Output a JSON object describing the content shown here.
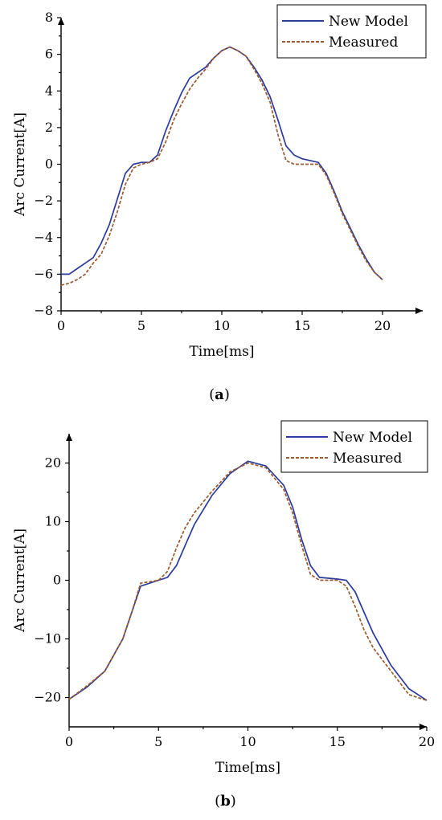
{
  "chart_data": [
    {
      "type": "line",
      "caption": "(a)",
      "caption_bold": "a",
      "xlabel": "Time[ms]",
      "ylabel": "Arc Current[A]",
      "xlim": [
        0,
        22.5
      ],
      "ylim": [
        -8,
        8
      ],
      "xticks": [
        0,
        5,
        10,
        15,
        20
      ],
      "yticks": [
        -8,
        -6,
        -4,
        -2,
        0,
        2,
        4,
        6,
        8
      ],
      "legend_position": "top-right",
      "series": [
        {
          "name": "New Model",
          "color": "#2b3a9c",
          "dash": "solid",
          "x": [
            0,
            0.5,
            1,
            1.5,
            2,
            2.5,
            3,
            3.5,
            4,
            4.5,
            5,
            5.5,
            6,
            6.5,
            7,
            7.5,
            8,
            8.5,
            9,
            9.5,
            10,
            10.5,
            11,
            11.5,
            12,
            12.5,
            13,
            13.5,
            14,
            14.5,
            15,
            15.5,
            16,
            16.5,
            17,
            17.5,
            18,
            18.5,
            19,
            19.5,
            20
          ],
          "y": [
            -6.0,
            -6.0,
            -5.7,
            -5.4,
            -5.1,
            -4.3,
            -3.3,
            -1.9,
            -0.5,
            0.0,
            0.1,
            0.1,
            0.5,
            1.8,
            2.9,
            3.9,
            4.7,
            5.0,
            5.3,
            5.8,
            6.2,
            6.4,
            6.2,
            5.9,
            5.3,
            4.6,
            3.7,
            2.4,
            1.0,
            0.5,
            0.3,
            0.2,
            0.1,
            -0.5,
            -1.5,
            -2.6,
            -3.5,
            -4.4,
            -5.2,
            -5.9,
            -6.3
          ]
        },
        {
          "name": "Measured",
          "color": "#9a5a2e",
          "dash": "dashed",
          "x": [
            0,
            0.5,
            1,
            1.5,
            2,
            2.5,
            3,
            3.5,
            4,
            4.5,
            5,
            5.5,
            6,
            6.5,
            7,
            7.5,
            8,
            8.5,
            9,
            9.5,
            10,
            10.5,
            11,
            11.5,
            12,
            12.5,
            13,
            13.5,
            14,
            14.5,
            15,
            15.5,
            16,
            16.5,
            17,
            17.5,
            18,
            18.5,
            19,
            19.5,
            20
          ],
          "y": [
            -6.6,
            -6.5,
            -6.3,
            -6.0,
            -5.4,
            -4.9,
            -3.9,
            -2.6,
            -1.1,
            -0.2,
            0.0,
            0.1,
            0.3,
            1.2,
            2.4,
            3.3,
            4.1,
            4.7,
            5.2,
            5.8,
            6.2,
            6.4,
            6.2,
            5.9,
            5.2,
            4.4,
            3.4,
            1.6,
            0.2,
            0.0,
            0.0,
            0.0,
            0.0,
            -0.6,
            -1.6,
            -2.7,
            -3.6,
            -4.5,
            -5.3,
            -5.9,
            -6.3
          ]
        }
      ]
    },
    {
      "type": "line",
      "caption": "(b)",
      "caption_bold": "b",
      "xlabel": "Time[ms]",
      "ylabel": "Arc Current[A]",
      "xlim": [
        0,
        20
      ],
      "ylim": [
        -25,
        25
      ],
      "xticks": [
        0,
        5,
        10,
        15,
        20
      ],
      "yticks": [
        -20,
        -10,
        0,
        10,
        20
      ],
      "legend_position": "top-right",
      "series": [
        {
          "name": "New Model",
          "color": "#2b3a9c",
          "dash": "solid",
          "x": [
            0,
            1,
            2,
            3,
            3.5,
            4,
            5,
            5.5,
            6,
            6.5,
            7,
            8,
            9,
            10,
            11,
            12,
            12.5,
            13,
            13.5,
            14,
            15,
            15.5,
            16,
            16.5,
            17,
            18,
            19,
            20
          ],
          "y": [
            -20.3,
            -18.2,
            -15.5,
            -10.0,
            -5.5,
            -1.0,
            0.0,
            0.5,
            2.5,
            6.0,
            9.5,
            14.5,
            18.2,
            20.3,
            19.5,
            16.2,
            12.5,
            7.0,
            2.5,
            0.5,
            0.2,
            0.0,
            -2.0,
            -5.5,
            -9.0,
            -14.5,
            -18.5,
            -20.5
          ]
        },
        {
          "name": "Measured",
          "color": "#9a5a2e",
          "dash": "dashed",
          "x": [
            0,
            1,
            2,
            3,
            3.5,
            4,
            5,
            5.5,
            6,
            6.5,
            7,
            8,
            9,
            10,
            11,
            12,
            12.5,
            13,
            13.5,
            14,
            15,
            15.5,
            16,
            16.5,
            17,
            18,
            19,
            20
          ],
          "y": [
            -20.3,
            -18.0,
            -15.5,
            -10.0,
            -5.5,
            -0.5,
            0.0,
            1.5,
            5.5,
            9.0,
            11.5,
            15.2,
            18.5,
            20.0,
            19.2,
            15.5,
            11.5,
            6.0,
            1.0,
            0.0,
            0.0,
            -1.0,
            -4.5,
            -8.5,
            -11.5,
            -15.5,
            -19.5,
            -20.5
          ]
        }
      ]
    }
  ]
}
